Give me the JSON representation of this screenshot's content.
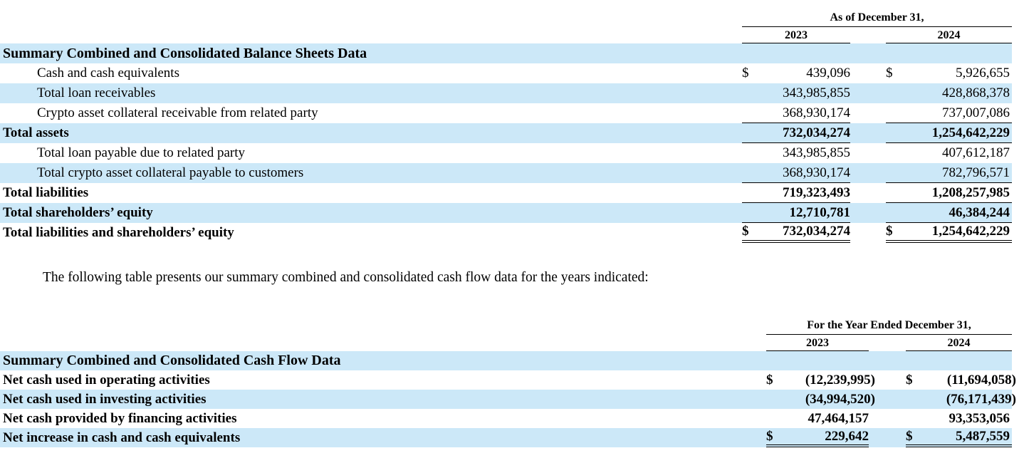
{
  "document": {
    "intro_paragraph": "The following table presents our summary combined and consolidated cash flow data for the years indicated:"
  },
  "colors": {
    "row_highlight": "#cce8f8",
    "text": "#000000",
    "rule": "#000000"
  },
  "balance_sheet_table": {
    "period_header": "As of December 31,",
    "columns": [
      "2023",
      "2024"
    ],
    "currency_symbol": "$",
    "rows": [
      {
        "label": "Summary Combined and Consolidated Balance Sheets Data",
        "type": "section"
      },
      {
        "label": "Cash and cash equivalents",
        "indent": true,
        "currency": true,
        "values": [
          "439,096",
          "5,926,655"
        ]
      },
      {
        "label": "Total loan receivables",
        "indent": true,
        "values": [
          "343,985,855",
          "428,868,378"
        ]
      },
      {
        "label": "Crypto asset collateral receivable from related party",
        "indent": true,
        "values": [
          "368,930,174",
          "737,007,086"
        ],
        "rule": "single"
      },
      {
        "label": "Total assets",
        "bold": true,
        "values": [
          "732,034,274",
          "1,254,642,229"
        ],
        "rule": "single"
      },
      {
        "label": "Total loan payable due to related party",
        "indent": true,
        "values": [
          "343,985,855",
          "407,612,187"
        ]
      },
      {
        "label": "Total crypto asset collateral payable to customers",
        "indent": true,
        "values": [
          "368,930,174",
          "782,796,571"
        ],
        "rule": "single"
      },
      {
        "label": "Total liabilities",
        "bold": true,
        "values": [
          "719,323,493",
          "1,208,257,985"
        ],
        "rule": "single"
      },
      {
        "label": "Total shareholders’ equity",
        "bold": true,
        "values": [
          "12,710,781",
          "46,384,244"
        ],
        "rule": "single"
      },
      {
        "label": "Total liabilities and shareholders’ equity",
        "bold": true,
        "currency": true,
        "values": [
          "732,034,274",
          "1,254,642,229"
        ],
        "rule": "double"
      }
    ]
  },
  "cash_flow_table": {
    "period_header": "For the Year Ended December 31,",
    "columns": [
      "2023",
      "2024"
    ],
    "currency_symbol": "$",
    "rows": [
      {
        "label": "Summary Combined and Consolidated Cash Flow Data",
        "type": "section"
      },
      {
        "label": "Net cash used in operating activities",
        "bold": true,
        "currency": true,
        "values": [
          "(12,239,995)",
          "(11,694,058)"
        ]
      },
      {
        "label": "Net cash used in investing activities",
        "bold": true,
        "values": [
          "(34,994,520)",
          "(76,171,439)"
        ]
      },
      {
        "label": "Net cash provided by financing activities",
        "bold": true,
        "values": [
          "47,464,157",
          "93,353,056"
        ]
      },
      {
        "label": "Net increase in cash and cash equivalents",
        "bold": true,
        "currency": true,
        "values": [
          "229,642",
          "5,487,559"
        ],
        "rule": "double"
      }
    ]
  }
}
